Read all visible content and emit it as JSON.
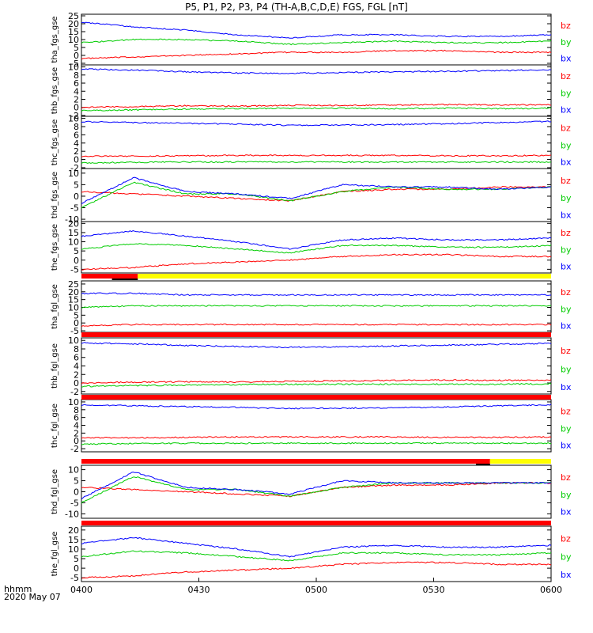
{
  "title": "P5, P1, P2, P3, P4 (TH-A,B,C,D,E) FGS, FGL [nT]",
  "time_axis": {
    "label_line1": "hhmm",
    "label_line2": "2020 May 07",
    "ticks": [
      "0400",
      "0430",
      "0500",
      "0530",
      "0600"
    ]
  },
  "colors": {
    "bx": "#0000ff",
    "by": "#00cc00",
    "bz": "#ff0000",
    "bar_red": "#ff0000",
    "bar_yellow": "#ffff00",
    "bar_black": "#000000"
  },
  "legend": [
    "bz",
    "by",
    "bx"
  ],
  "chart_data": [
    {
      "type": "line",
      "ylabel": "tha_fgs_gse",
      "ylim": [
        -6,
        26
      ],
      "yticks": [
        25,
        20,
        15,
        10,
        5,
        0,
        -5
      ],
      "series": [
        {
          "name": "bz",
          "values": [
            -2,
            -1,
            0,
            1,
            2,
            2,
            3,
            3,
            2,
            2
          ]
        },
        {
          "name": "by",
          "values": [
            8,
            10,
            10,
            9,
            7,
            8,
            9,
            8,
            8,
            9
          ]
        },
        {
          "name": "bx",
          "values": [
            21,
            18,
            16,
            13,
            11,
            13,
            13,
            12,
            12,
            13
          ]
        }
      ]
    },
    {
      "type": "line",
      "ylabel": "thb_fgs_gse",
      "ylim": [
        -2.2,
        10.5
      ],
      "yticks": [
        10,
        8,
        6,
        4,
        2,
        0,
        -2
      ],
      "series": [
        {
          "name": "bz",
          "values": [
            0,
            0.2,
            0.4,
            0.3,
            0.5,
            0.5,
            0.6,
            0.7,
            0.6,
            0.7
          ]
        },
        {
          "name": "by",
          "values": [
            -0.8,
            -0.6,
            -0.4,
            -0.3,
            -0.2,
            -0.2,
            -0.3,
            -0.2,
            -0.3,
            -0.2
          ]
        },
        {
          "name": "bx",
          "values": [
            9.5,
            9.2,
            8.8,
            8.5,
            8.4,
            8.6,
            8.8,
            8.9,
            9.1,
            9.3
          ]
        }
      ]
    },
    {
      "type": "line",
      "ylabel": "thc_fgs_gse",
      "ylim": [
        -2.2,
        10.5
      ],
      "yticks": [
        10,
        8,
        6,
        4,
        2,
        0,
        -2
      ],
      "series": [
        {
          "name": "bz",
          "values": [
            0.8,
            0.8,
            0.9,
            1,
            1,
            1,
            1,
            0.9,
            0.9,
            1
          ]
        },
        {
          "name": "by",
          "values": [
            -0.8,
            -0.7,
            -0.6,
            -0.6,
            -0.6,
            -0.6,
            -0.6,
            -0.6,
            -0.6,
            -0.6
          ]
        },
        {
          "name": "bx",
          "values": [
            9.2,
            9,
            8.8,
            8.6,
            8.3,
            8.4,
            8.5,
            8.7,
            9,
            9.3
          ]
        }
      ]
    },
    {
      "type": "line",
      "ylabel": "thd_fgs_gse",
      "ylim": [
        -11,
        12
      ],
      "yticks": [
        10,
        5,
        0,
        -5,
        -10
      ],
      "series": [
        {
          "name": "bz",
          "values": [
            2,
            1,
            0,
            -1,
            -2,
            2,
            3,
            3,
            4,
            4
          ]
        },
        {
          "name": "by",
          "values": [
            -5,
            6,
            1,
            1,
            -2,
            2,
            4,
            3,
            3,
            4
          ]
        },
        {
          "name": "bx",
          "values": [
            -3,
            8,
            2,
            1,
            -1,
            5,
            4,
            4,
            3,
            4
          ]
        }
      ]
    },
    {
      "type": "line",
      "ylabel": "the_fgs_gse",
      "ylim": [
        -7,
        21
      ],
      "yticks": [
        20,
        15,
        10,
        5,
        0,
        -5
      ],
      "series": [
        {
          "name": "bz",
          "values": [
            -5,
            -4,
            -2,
            -1,
            0,
            2,
            3,
            3,
            2,
            2
          ]
        },
        {
          "name": "by",
          "values": [
            6,
            9,
            8,
            6,
            4,
            8,
            8,
            7,
            7,
            8
          ]
        },
        {
          "name": "bx",
          "values": [
            13,
            16,
            13,
            10,
            6,
            11,
            12,
            11,
            11,
            12
          ]
        }
      ]
    },
    {
      "type": "line",
      "ylabel": "tha_fgl_gse",
      "ylim": [
        -6,
        27
      ],
      "yticks": [
        25,
        20,
        15,
        10,
        5,
        0,
        -5
      ],
      "series": [
        {
          "name": "bz",
          "values": [
            -2,
            -1,
            -1,
            -1,
            -1,
            -1,
            -1,
            -1,
            -1,
            -1
          ]
        },
        {
          "name": "by",
          "values": [
            10,
            11,
            11,
            11,
            11,
            11,
            11,
            11,
            11,
            11
          ]
        },
        {
          "name": "bx",
          "values": [
            19,
            19,
            18,
            18,
            18,
            18,
            18,
            18,
            18,
            18
          ]
        }
      ]
    },
    {
      "type": "line",
      "ylabel": "thb_fgl_gse",
      "ylim": [
        -2.6,
        10.6
      ],
      "yticks": [
        10,
        8,
        6,
        4,
        2,
        0,
        -2
      ],
      "series": [
        {
          "name": "bz",
          "values": [
            0,
            0.2,
            0.3,
            0.2,
            0.4,
            0.5,
            0.6,
            0.7,
            0.6,
            0.7
          ]
        },
        {
          "name": "by",
          "values": [
            -0.8,
            -0.6,
            -0.5,
            -0.4,
            -0.3,
            -0.3,
            -0.3,
            -0.3,
            -0.3,
            -0.2
          ]
        },
        {
          "name": "bx",
          "values": [
            9.4,
            9.2,
            8.8,
            8.6,
            8.4,
            8.5,
            8.7,
            8.9,
            9.1,
            9.3
          ]
        }
      ]
    },
    {
      "type": "line",
      "ylabel": "thc_fgl_gse",
      "ylim": [
        -2.8,
        10.6
      ],
      "yticks": [
        10,
        8,
        6,
        4,
        2,
        0,
        -2
      ],
      "series": [
        {
          "name": "bz",
          "values": [
            0.8,
            0.8,
            0.9,
            1,
            1,
            1,
            1,
            0.9,
            0.9,
            1
          ]
        },
        {
          "name": "by",
          "values": [
            -0.8,
            -0.7,
            -0.6,
            -0.6,
            -0.6,
            -0.6,
            -0.6,
            -0.6,
            -0.6,
            -0.6
          ]
        },
        {
          "name": "bx",
          "values": [
            9.2,
            9,
            8.8,
            8.6,
            8.3,
            8.4,
            8.5,
            8.7,
            9,
            9.3
          ]
        }
      ]
    },
    {
      "type": "line",
      "ylabel": "thd_fgl_gse",
      "ylim": [
        -12,
        12
      ],
      "yticks": [
        10,
        5,
        0,
        -5,
        -10
      ],
      "series": [
        {
          "name": "bz",
          "values": [
            2,
            1,
            0,
            -1,
            -2,
            2,
            3,
            3,
            4,
            4
          ]
        },
        {
          "name": "by",
          "values": [
            -5,
            7,
            1,
            1,
            -2,
            2,
            4,
            4,
            4,
            4
          ]
        },
        {
          "name": "bx",
          "values": [
            -3,
            9,
            2,
            1,
            -1,
            5,
            4,
            4,
            4,
            4
          ]
        }
      ]
    },
    {
      "type": "line",
      "ylabel": "the_fgl_gse",
      "ylim": [
        -7,
        22
      ],
      "yticks": [
        20,
        15,
        10,
        5,
        0,
        -5
      ],
      "series": [
        {
          "name": "bz",
          "values": [
            -5,
            -4,
            -2,
            -1,
            0,
            2,
            3,
            3,
            2,
            2
          ]
        },
        {
          "name": "by",
          "values": [
            6,
            9,
            8,
            6,
            4,
            8,
            8,
            7,
            7,
            8
          ]
        },
        {
          "name": "bx",
          "values": [
            13,
            16,
            13,
            10,
            6,
            11,
            12,
            11,
            11,
            12
          ]
        }
      ]
    }
  ],
  "status_bars": [
    {
      "after_panel": 4,
      "segments": [
        {
          "from": 0,
          "to": 0.12,
          "color": "bar_red"
        },
        {
          "from": 0.12,
          "to": 1,
          "color": "bar_yellow"
        }
      ],
      "under": [
        {
          "from": 0.065,
          "to": 0.12
        }
      ]
    },
    {
      "after_panel": 5,
      "segments": [
        {
          "from": 0,
          "to": 1,
          "color": "bar_red"
        }
      ],
      "under": []
    },
    {
      "after_panel": 6,
      "segments": [
        {
          "from": 0,
          "to": 1,
          "color": "bar_red"
        }
      ],
      "under": []
    },
    {
      "after_panel": 7,
      "segments": [
        {
          "from": 0,
          "to": 0.87,
          "color": "bar_red"
        },
        {
          "from": 0.87,
          "to": 1,
          "color": "bar_yellow"
        }
      ],
      "under": [
        {
          "from": 0.84,
          "to": 0.87
        }
      ]
    },
    {
      "after_panel": 8,
      "segments": [
        {
          "from": 0,
          "to": 1,
          "color": "bar_red"
        }
      ],
      "under": []
    }
  ]
}
